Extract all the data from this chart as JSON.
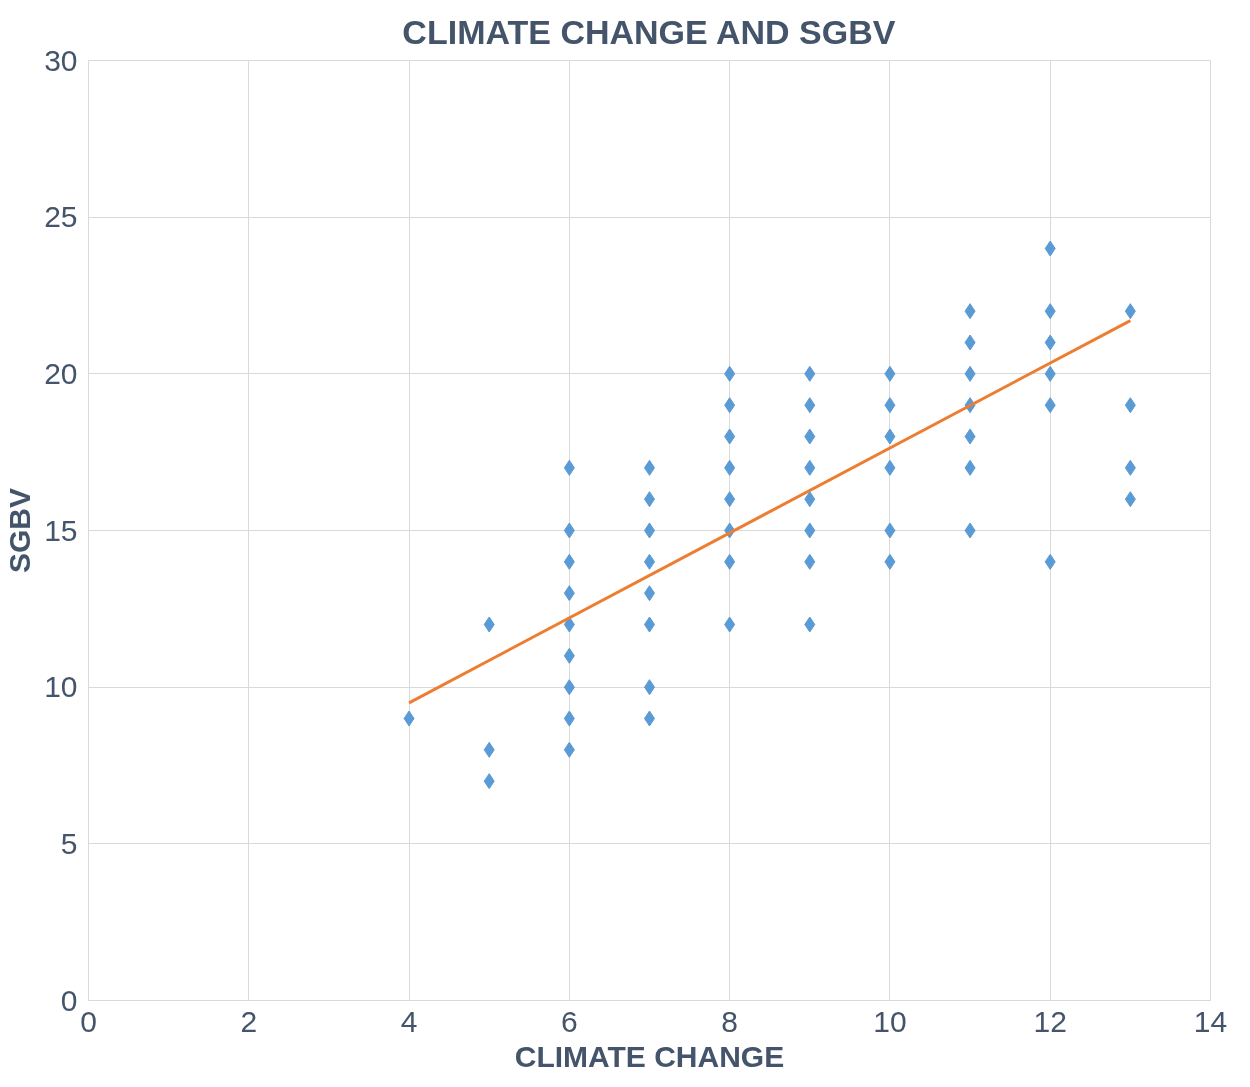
{
  "chart_data": {
    "type": "scatter",
    "title": "CLIMATE CHANGE AND SGBV",
    "xlabel": "CLIMATE CHANGE",
    "ylabel": "SGBV",
    "xlim": [
      0,
      14
    ],
    "ylim": [
      0,
      30
    ],
    "xticks": [
      0,
      2,
      4,
      6,
      8,
      10,
      12,
      14
    ],
    "yticks": [
      0,
      5,
      10,
      15,
      20,
      25,
      30
    ],
    "grid": true,
    "marker": "diamond",
    "series": [
      {
        "color": "#5b9bd5",
        "x": [
          4,
          5,
          5,
          5,
          6,
          6,
          6,
          6,
          6,
          6,
          6,
          6,
          6,
          7,
          7,
          7,
          7,
          7,
          7,
          7,
          7,
          8,
          8,
          8,
          8,
          8,
          8,
          8,
          8,
          9,
          9,
          9,
          9,
          9,
          9,
          9,
          9,
          10,
          10,
          10,
          10,
          10,
          10,
          11,
          11,
          11,
          11,
          11,
          11,
          11,
          12,
          12,
          12,
          12,
          12,
          12,
          13,
          13,
          13,
          13
        ],
        "values": [
          9,
          12,
          8,
          7,
          17,
          15,
          14,
          13,
          12,
          11,
          10,
          9,
          8,
          17,
          16,
          15,
          14,
          13,
          12,
          10,
          9,
          20,
          19,
          18,
          17,
          16,
          15,
          14,
          12,
          20,
          19,
          18,
          17,
          16,
          15,
          14,
          12,
          20,
          19,
          18,
          17,
          15,
          14,
          22,
          21,
          20,
          19,
          18,
          17,
          15,
          24,
          22,
          21,
          20,
          19,
          14,
          22,
          19,
          17,
          16
        ]
      },
      {
        "type": "line",
        "color": "#ed7d31",
        "x": [
          4,
          13
        ],
        "values": [
          9.5,
          21.7
        ],
        "marker": "none",
        "line_style": "solid"
      }
    ]
  }
}
